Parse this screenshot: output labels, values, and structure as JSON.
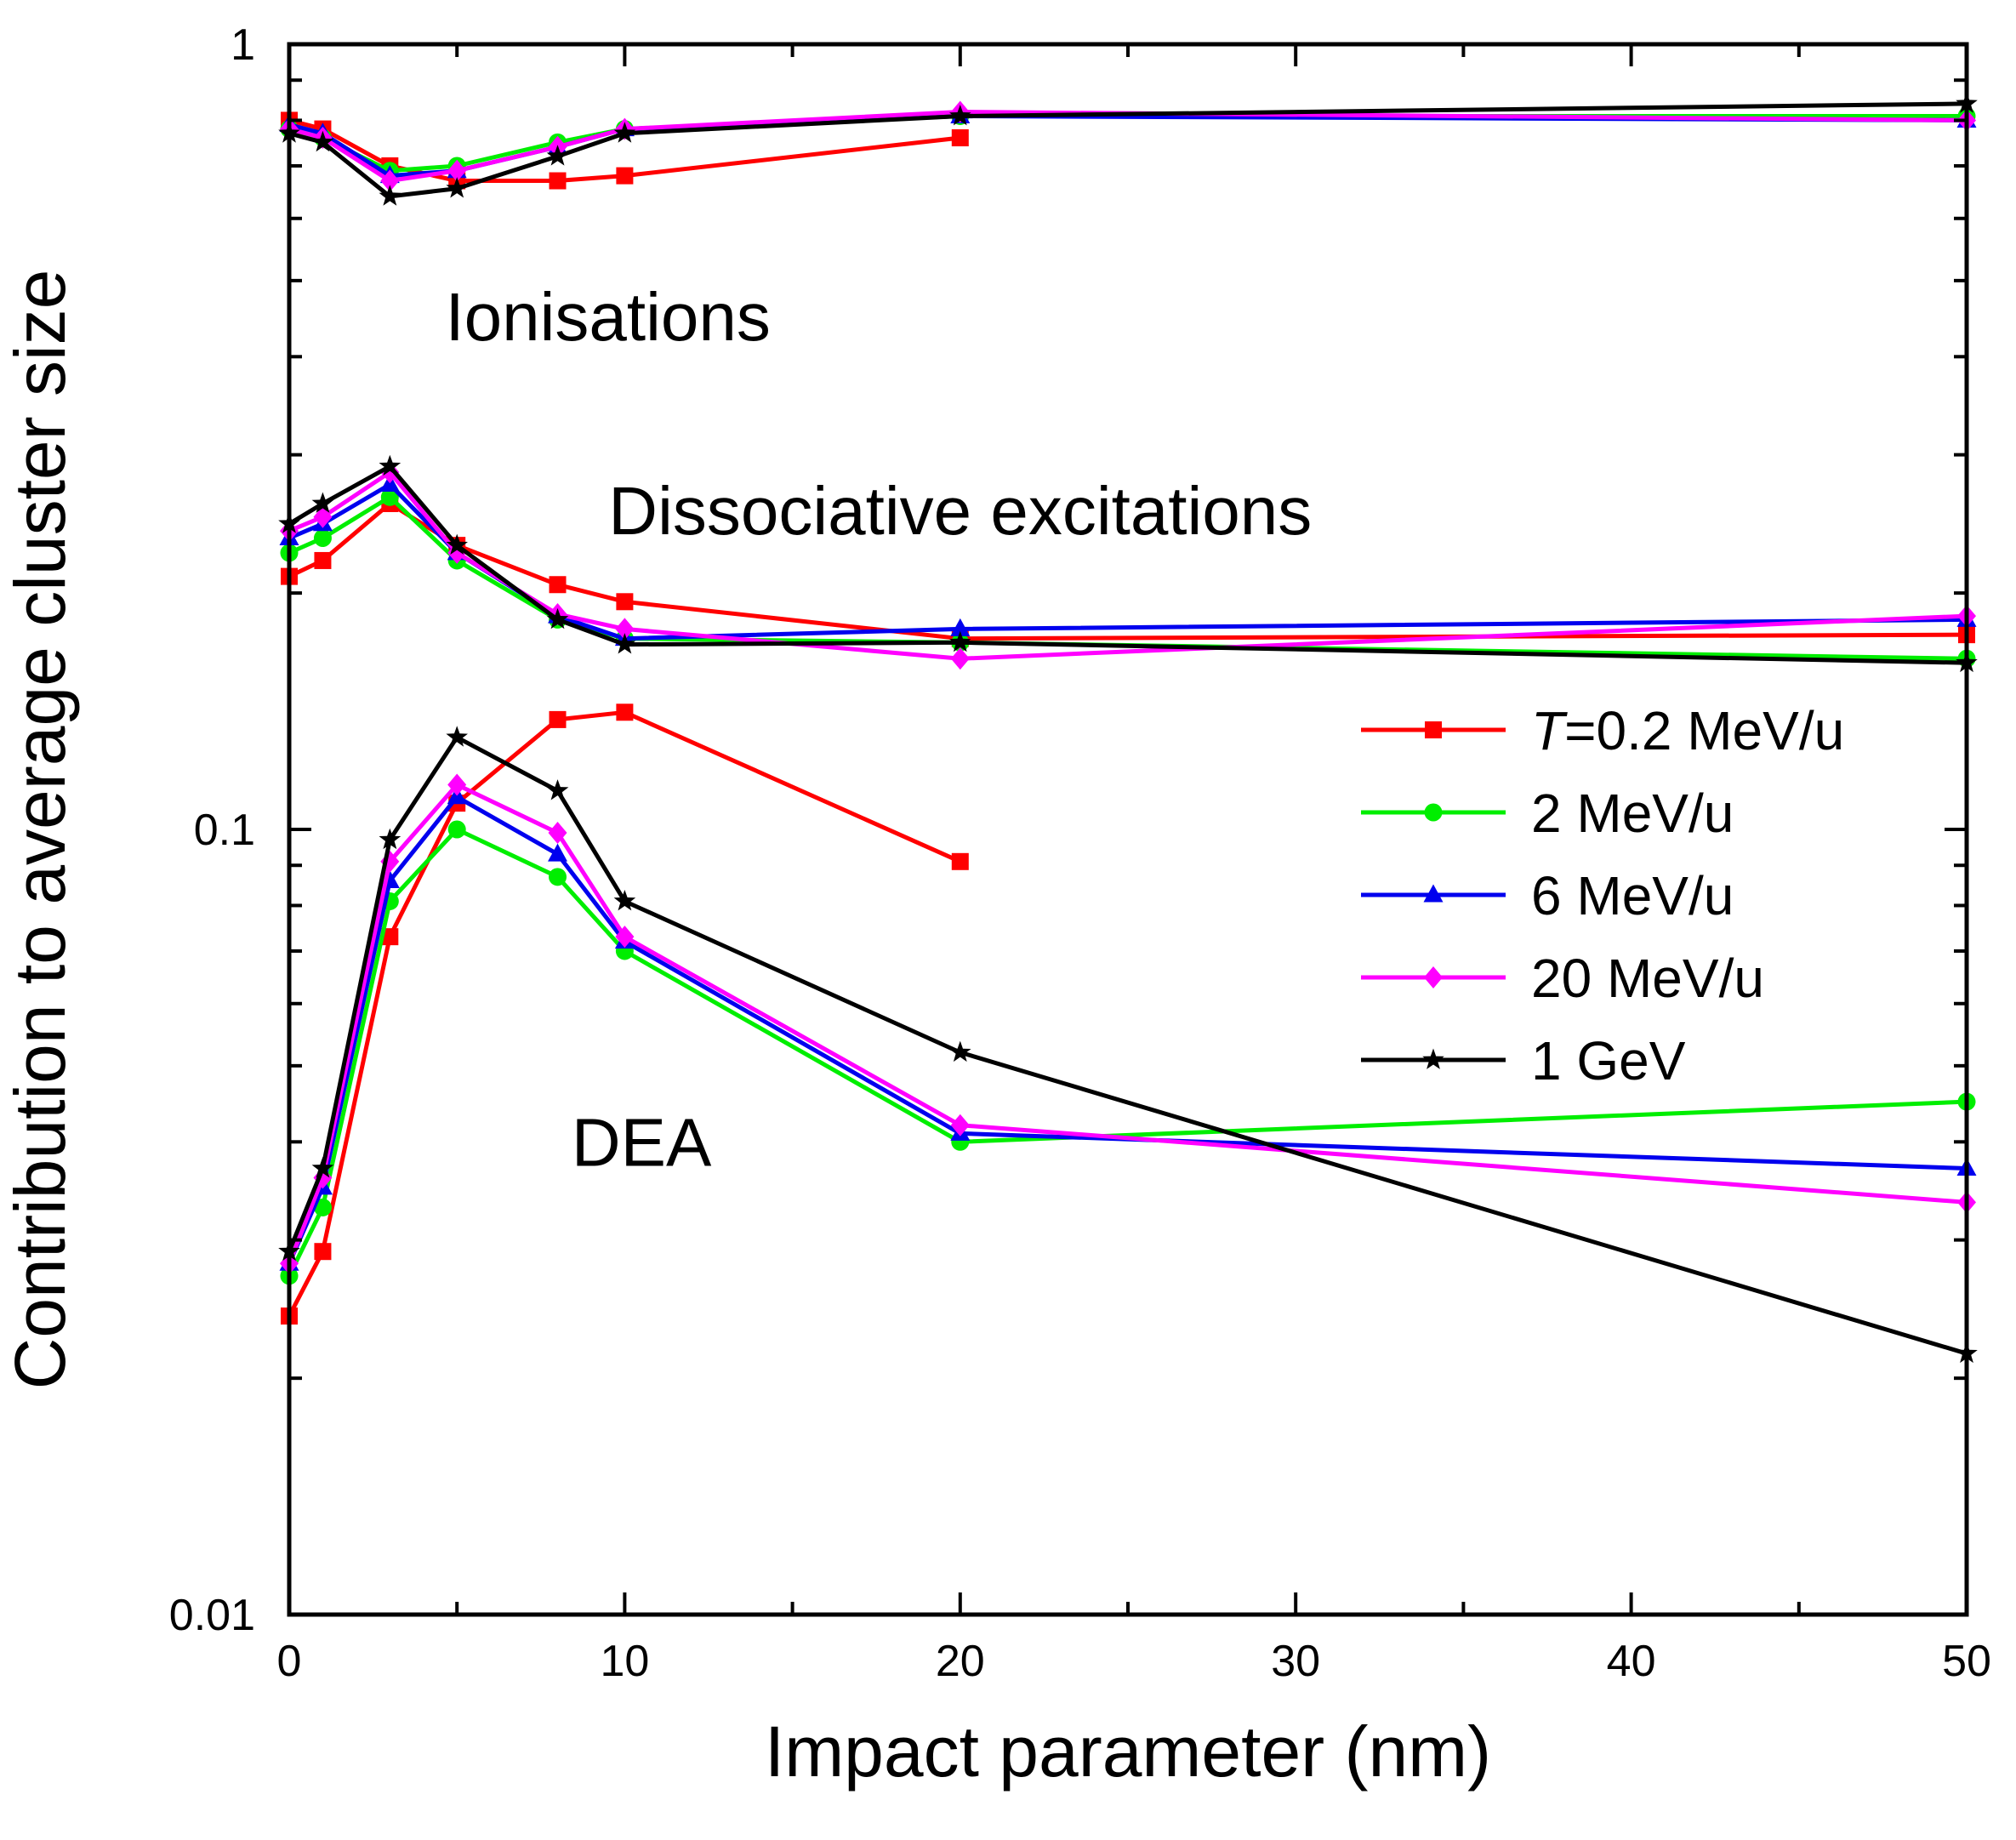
{
  "chart_data": {
    "type": "line",
    "xlabel": "Impact parameter (nm)",
    "ylabel": "Contribution to average cluster size",
    "xlim": [
      0,
      50
    ],
    "ylim": [
      0.01,
      1
    ],
    "yscale": "log",
    "x_ticks": [
      0,
      10,
      20,
      30,
      40,
      50
    ],
    "x_tick_labels": [
      "0",
      "10",
      "20",
      "30",
      "40",
      "50"
    ],
    "y_ticks": [
      0.01,
      0.1,
      1
    ],
    "y_tick_labels": [
      "0.01",
      "0.1",
      "1"
    ],
    "grid": false,
    "legend_position": "right",
    "annotations": [
      {
        "text": "Ionisations",
        "x": 9.5,
        "y": 0.45
      },
      {
        "text": "Dissociative excitations",
        "x": 20,
        "y": 0.255
      },
      {
        "text": "DEA",
        "x": 10.5,
        "y": 0.04
      }
    ],
    "series": [
      {
        "name": "T=0.2 MeV/u",
        "legend_italic": "T",
        "legend_rest": "=0.2 MeV/u",
        "color": "#ff0000",
        "marker": "square",
        "groups": [
          {
            "x": [
              0,
              1,
              3,
              5,
              8,
              10,
              20
            ],
            "y": [
              0.8,
              0.78,
              0.7,
              0.67,
              0.67,
              0.68,
              0.76
            ]
          },
          {
            "x": [
              0,
              1,
              3,
              5,
              8,
              10,
              20,
              50
            ],
            "y": [
              0.21,
              0.22,
              0.26,
              0.23,
              0.205,
              0.195,
              0.175,
              0.177
            ]
          },
          {
            "x": [
              0,
              1,
              3,
              5,
              8,
              10,
              20
            ],
            "y": [
              0.024,
              0.029,
              0.073,
              0.108,
              0.138,
              0.141,
              0.091
            ]
          }
        ]
      },
      {
        "name": "2 MeV/u",
        "color": "#00ee00",
        "marker": "circle",
        "groups": [
          {
            "x": [
              0,
              1,
              3,
              5,
              8,
              10,
              20,
              50
            ],
            "y": [
              0.78,
              0.76,
              0.69,
              0.7,
              0.75,
              0.78,
              0.81,
              0.81
            ]
          },
          {
            "x": [
              0,
              1,
              3,
              5,
              8,
              10,
              20,
              50
            ],
            "y": [
              0.225,
              0.235,
              0.265,
              0.22,
              0.185,
              0.175,
              0.173,
              0.165
            ]
          },
          {
            "x": [
              0,
              1,
              3,
              5,
              8,
              10,
              20,
              50
            ],
            "y": [
              0.027,
              0.033,
              0.081,
              0.1,
              0.087,
              0.07,
              0.04,
              0.045
            ]
          }
        ]
      },
      {
        "name": "6 MeV/u",
        "color": "#0000ee",
        "marker": "triangle",
        "groups": [
          {
            "x": [
              0,
              1,
              3,
              5,
              8,
              10,
              20,
              50
            ],
            "y": [
              0.79,
              0.77,
              0.68,
              0.69,
              0.74,
              0.78,
              0.81,
              0.8
            ]
          },
          {
            "x": [
              0,
              1,
              3,
              5,
              8,
              10,
              20,
              50
            ],
            "y": [
              0.235,
              0.245,
              0.275,
              0.225,
              0.187,
              0.175,
              0.18,
              0.185
            ]
          },
          {
            "x": [
              0,
              1,
              3,
              5,
              8,
              10,
              20,
              50
            ],
            "y": [
              0.028,
              0.035,
              0.086,
              0.11,
              0.093,
              0.072,
              0.041,
              0.037
            ]
          }
        ]
      },
      {
        "name": "20 MeV/u",
        "color": "#ff00ff",
        "marker": "diamond",
        "groups": [
          {
            "x": [
              0,
              1,
              3,
              5,
              8,
              10,
              20,
              50
            ],
            "y": [
              0.78,
              0.76,
              0.67,
              0.69,
              0.74,
              0.78,
              0.82,
              0.8
            ]
          },
          {
            "x": [
              0,
              1,
              3,
              5,
              8,
              10,
              20,
              50
            ],
            "y": [
              0.24,
              0.25,
              0.285,
              0.225,
              0.188,
              0.18,
              0.165,
              0.187
            ]
          },
          {
            "x": [
              0,
              1,
              3,
              5,
              8,
              10,
              20,
              50
            ],
            "y": [
              0.028,
              0.036,
              0.091,
              0.114,
              0.099,
              0.073,
              0.042,
              0.0335
            ]
          }
        ]
      },
      {
        "name": "1 GeV",
        "color": "#000000",
        "marker": "star",
        "groups": [
          {
            "x": [
              0,
              1,
              3,
              5,
              8,
              10,
              20,
              50
            ],
            "y": [
              0.77,
              0.75,
              0.64,
              0.655,
              0.72,
              0.77,
              0.81,
              0.84
            ]
          },
          {
            "x": [
              0,
              1,
              3,
              5,
              8,
              10,
              20,
              50
            ],
            "y": [
              0.245,
              0.26,
              0.29,
              0.23,
              0.185,
              0.172,
              0.173,
              0.163
            ]
          },
          {
            "x": [
              0,
              1,
              3,
              5,
              8,
              10,
              20,
              50
            ],
            "y": [
              0.029,
              0.037,
              0.097,
              0.131,
              0.112,
              0.081,
              0.052,
              0.0215
            ]
          }
        ]
      }
    ]
  }
}
